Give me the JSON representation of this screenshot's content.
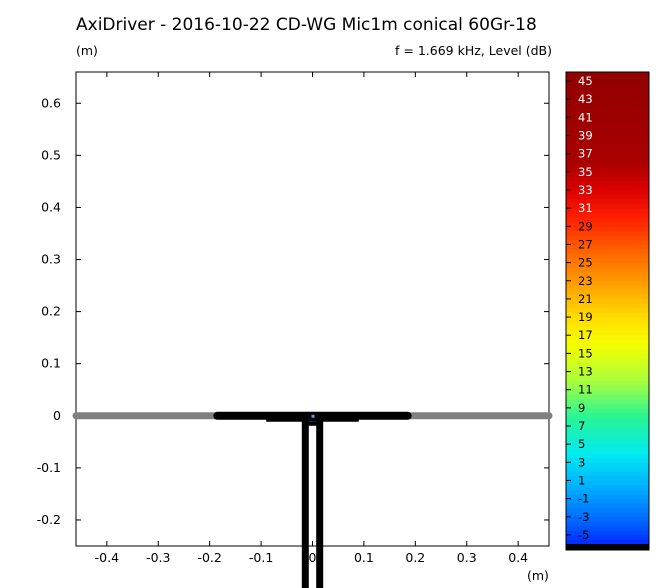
{
  "header": {
    "title": "AxiDriver - 2016-10-22 CD-WG Mic1m conical 60Gr-18",
    "y_unit": "(m)",
    "info": "f = 1.669 kHz, Level  (dB)",
    "x_unit": "(m)"
  },
  "chart_data": {
    "type": "heatmap",
    "title": "AxiDriver - 2016-10-22 CD-WG Mic1m conical 60Gr-18",
    "xlabel": "(m)",
    "ylabel": "(m)",
    "xlim": [
      -0.46,
      0.46
    ],
    "ylim": [
      -0.25,
      0.66
    ],
    "x_ticks": [
      "-0.4",
      "-0.3",
      "-0.2",
      "-0.1",
      "0",
      "0.1",
      "0.2",
      "0.3",
      "0.4"
    ],
    "x_tick_values": [
      -0.4,
      -0.3,
      -0.2,
      -0.1,
      0,
      0.1,
      0.2,
      0.3,
      0.4
    ],
    "y_ticks": [
      "0.6",
      "0.5",
      "0.4",
      "0.3",
      "0.2",
      "0.1",
      "0",
      "-0.1",
      "-0.2"
    ],
    "y_tick_values": [
      0.6,
      0.5,
      0.4,
      0.3,
      0.2,
      0.1,
      0,
      -0.1,
      -0.2
    ],
    "frequency": "f = 1.669 kHz",
    "colorbar": {
      "label": "Level  (dB)",
      "ticks": [
        "45",
        "43",
        "41",
        "39",
        "37",
        "35",
        "33",
        "31",
        "29",
        "27",
        "25",
        "23",
        "21",
        "19",
        "17",
        "15",
        "13",
        "11",
        "9",
        "7",
        "5",
        "3",
        "1",
        "-1",
        "-3",
        "-5"
      ],
      "tick_values": [
        45,
        43,
        41,
        39,
        37,
        35,
        33,
        31,
        29,
        27,
        25,
        23,
        21,
        19,
        17,
        15,
        13,
        11,
        9,
        7,
        5,
        3,
        1,
        -1,
        -3,
        -5
      ],
      "range": [
        -6,
        46
      ]
    },
    "geometry": {
      "baffle": {
        "x": [
          -0.46,
          0.46
        ],
        "y": 0,
        "color": "#808080"
      },
      "waveguide": {
        "x": [
          -0.185,
          0.185
        ],
        "y": 0,
        "color": "#000000"
      },
      "driver_tube": {
        "x": [
          -0.014,
          0.014
        ],
        "y": [
          -0.32,
          0
        ],
        "color": "#000000"
      }
    }
  }
}
